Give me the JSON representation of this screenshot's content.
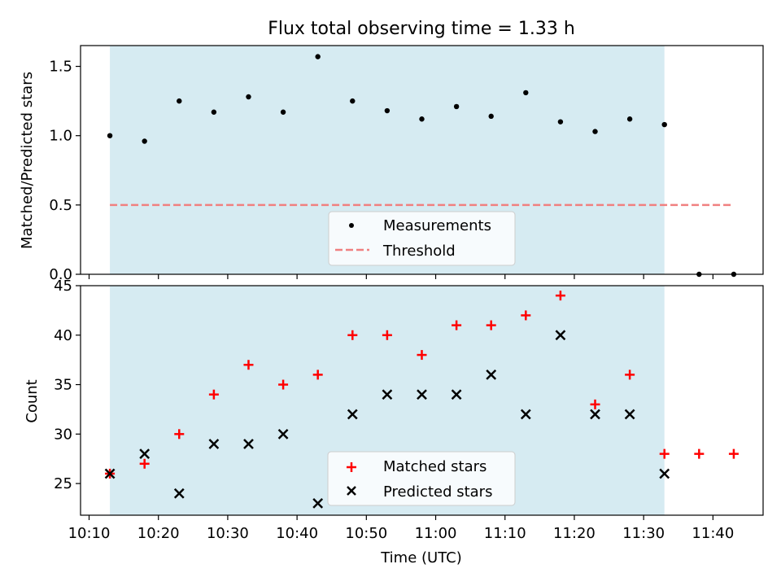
{
  "chart_data": [
    {
      "type": "scatter",
      "title": "Flux total observing time = 1.33 h",
      "xlabel": "",
      "ylabel": "Matched/Predicted stars",
      "xlim": [
        "10:08:46",
        "11:47:14"
      ],
      "ylim": [
        0,
        1.65
      ],
      "yticks": [
        "0.0",
        "0.5",
        "1.0",
        "1.5"
      ],
      "shaded_span": [
        "10:13",
        "11:33"
      ],
      "shade_color": "#add8e6",
      "legend": {
        "placement": "lower center",
        "entries": [
          "Measurements",
          "Threshold"
        ]
      },
      "series": [
        {
          "name": "Measurements",
          "marker": "dot",
          "color": "#000000",
          "x": [
            "10:13",
            "10:18",
            "10:23",
            "10:28",
            "10:33",
            "10:38",
            "10:43",
            "10:48",
            "10:53",
            "10:58",
            "11:03",
            "11:08",
            "11:13",
            "11:18",
            "11:23",
            "11:28",
            "11:33",
            "11:38",
            "11:43"
          ],
          "y": [
            1.0,
            0.96,
            1.25,
            1.17,
            1.28,
            1.17,
            1.57,
            1.25,
            1.18,
            1.12,
            1.21,
            1.14,
            1.31,
            1.1,
            1.03,
            1.12,
            1.08,
            0.0,
            0.0
          ]
        },
        {
          "name": "Threshold",
          "marker": "dashed-line",
          "color": "#f08080",
          "x": [
            "10:13",
            "11:43"
          ],
          "y": [
            0.5,
            0.5
          ]
        }
      ]
    },
    {
      "type": "scatter",
      "title": "",
      "xlabel": "Time (UTC)",
      "ylabel": "Count",
      "xlim": [
        "10:08:46",
        "11:47:14"
      ],
      "ylim": [
        21.8,
        45
      ],
      "yticks": [
        "25",
        "30",
        "35",
        "40",
        "45"
      ],
      "xticks": [
        "10:10",
        "10:20",
        "10:30",
        "10:40",
        "10:50",
        "11:00",
        "11:10",
        "11:20",
        "11:30",
        "11:40"
      ],
      "shaded_span": [
        "10:13",
        "11:33"
      ],
      "shade_color": "#add8e6",
      "legend": {
        "placement": "lower center",
        "entries": [
          "Matched stars",
          "Predicted stars"
        ]
      },
      "series": [
        {
          "name": "Matched stars",
          "marker": "plus",
          "color": "#ff0000",
          "x": [
            "10:13",
            "10:18",
            "10:23",
            "10:28",
            "10:33",
            "10:38",
            "10:43",
            "10:48",
            "10:53",
            "10:58",
            "11:03",
            "11:08",
            "11:13",
            "11:18",
            "11:23",
            "11:28",
            "11:33",
            "11:38",
            "11:43"
          ],
          "y": [
            26,
            27,
            30,
            34,
            37,
            35,
            36,
            40,
            40,
            38,
            41,
            41,
            42,
            44,
            33,
            36,
            28,
            28,
            28
          ]
        },
        {
          "name": "Predicted stars",
          "marker": "x",
          "color": "#000000",
          "x": [
            "10:13",
            "10:18",
            "10:23",
            "10:28",
            "10:33",
            "10:38",
            "10:43",
            "10:48",
            "10:53",
            "10:58",
            "11:03",
            "11:08",
            "11:13",
            "11:18",
            "11:23",
            "11:28",
            "11:33"
          ],
          "y": [
            26,
            28,
            24,
            29,
            29,
            30,
            23,
            32,
            34,
            34,
            34,
            36,
            32,
            40,
            32,
            32,
            26
          ]
        }
      ]
    }
  ]
}
